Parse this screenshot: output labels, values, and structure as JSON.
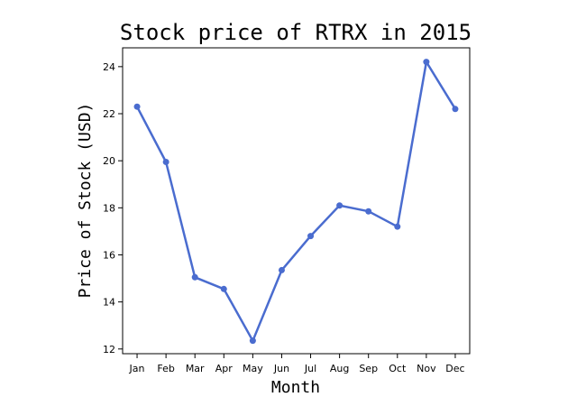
{
  "chart_data": {
    "type": "line",
    "title": "Stock price of RTRX in 2015",
    "xlabel": "Month",
    "ylabel": "Price of Stock (USD)",
    "categories": [
      "Jan",
      "Feb",
      "Mar",
      "Apr",
      "May",
      "Jun",
      "Jul",
      "Aug",
      "Sep",
      "Oct",
      "Nov",
      "Dec"
    ],
    "values": [
      22.3,
      19.95,
      15.05,
      14.55,
      12.35,
      15.35,
      16.8,
      18.1,
      17.85,
      17.2,
      24.2,
      22.2
    ],
    "ylim": [
      11.8,
      24.8
    ],
    "yticks": [
      12,
      14,
      16,
      18,
      20,
      22,
      24
    ],
    "grid": false,
    "line_color": "#4a6ccf"
  }
}
